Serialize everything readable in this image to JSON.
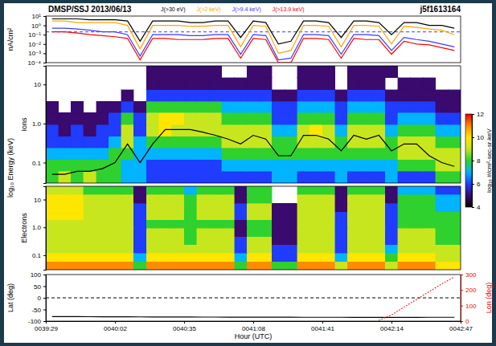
{
  "chart_data": [
    {
      "type": "line",
      "title": "DMSP/SSJ 2013/06/13",
      "subtitle": "j5f1613164",
      "ylabel": "nA/cm²",
      "log": "y",
      "legend": "top",
      "tick_labels": "y",
      "xlim": [
        2369,
        2567
      ],
      "ylim": [
        0.0001,
        10
      ],
      "yticks": [
        {
          "value": 0.0001,
          "label": "10⁻⁴"
        },
        {
          "value": 0.001,
          "label": "10⁻³"
        },
        {
          "value": 0.01,
          "label": "10⁻²"
        },
        {
          "value": 0.1,
          "label": "10⁻¹"
        },
        {
          "value": 1,
          "label": "10⁰"
        },
        {
          "value": 10,
          "label": "10¹"
        }
      ],
      "x": [
        2372,
        2378,
        2384,
        2390,
        2396,
        2402,
        2408,
        2414,
        2420,
        2426,
        2432,
        2438,
        2444,
        2450,
        2456,
        2462,
        2468,
        2474,
        2480,
        2486,
        2492,
        2498,
        2504,
        2510,
        2516,
        2522,
        2528,
        2534,
        2540,
        2546,
        2552,
        2558,
        2564
      ],
      "series": [
        {
          "name": "J(>30 eV)",
          "color": "#000000",
          "values": [
            5,
            5,
            5,
            4,
            4,
            4,
            3,
            0.02,
            3,
            3,
            3,
            2,
            2,
            3,
            3,
            0.05,
            3,
            2,
            0.01,
            0.02,
            3,
            3,
            2,
            0.05,
            3,
            3,
            2,
            0.1,
            2,
            2,
            1,
            1,
            0.5
          ]
        },
        {
          "name": "J(>2 keV)",
          "color": "#ffa500",
          "values": [
            3,
            3,
            2,
            2,
            2,
            2,
            1,
            0.003,
            1,
            1,
            1,
            0.8,
            0.8,
            1,
            1,
            0.005,
            1,
            0.8,
            0.001,
            0.002,
            1,
            1,
            0.8,
            0.005,
            1,
            1,
            0.8,
            0.01,
            0.8,
            0.6,
            0.4,
            0.3,
            0.1
          ]
        },
        {
          "name": "J(>9.4 keV)",
          "color": "#3c3cff",
          "values": [
            0.5,
            0.5,
            0.4,
            0.3,
            0.2,
            0.2,
            0.1,
            0.0005,
            0.1,
            0.1,
            0.1,
            0.08,
            0.08,
            0.1,
            0.1,
            0.0008,
            0.1,
            0.08,
            0.0002,
            0.0003,
            0.1,
            0.1,
            0.08,
            0.0008,
            0.1,
            0.1,
            0.08,
            0.002,
            0.05,
            0.03,
            0.02,
            0.01,
            0.005
          ]
        },
        {
          "name": "J(>13.9 keV)",
          "color": "#ff0000",
          "values": [
            0.2,
            0.2,
            0.15,
            0.1,
            0.08,
            0.06,
            0.04,
            0.0002,
            0.04,
            0.04,
            0.03,
            0.03,
            0.03,
            0.04,
            0.04,
            0.0003,
            0.04,
            0.03,
            0.0001,
            0.0001,
            0.04,
            0.04,
            0.03,
            0.0003,
            0.04,
            0.03,
            0.03,
            0.0008,
            0.02,
            0.01,
            0.008,
            0.004,
            0.002
          ]
        }
      ],
      "hline": {
        "value": 0.2,
        "color": "#3c3cff",
        "line_style": "dashed"
      }
    },
    {
      "type": "heatmap",
      "ylabel": "Ions",
      "annotations": [
        {
          "text": "log₁₀ Energy (keV)"
        }
      ],
      "log": "y",
      "tick_labels": "y",
      "xlim": [
        2369,
        2567
      ],
      "ylim": [
        0.03,
        30
      ],
      "yticks": [
        0.1,
        {
          "value": 1,
          "label": "1.0"
        },
        10
      ],
      "x_edges": [
        2369,
        2375,
        2381,
        2387,
        2393,
        2399,
        2405,
        2411,
        2417,
        2423,
        2429,
        2435,
        2441,
        2447,
        2453,
        2459,
        2465,
        2471,
        2477,
        2483,
        2489,
        2495,
        2501,
        2507,
        2513,
        2519,
        2525,
        2531,
        2537,
        2543,
        2549,
        2555,
        2561,
        2567
      ],
      "y_edges": [
        0.03,
        0.06,
        0.12,
        0.24,
        0.47,
        0.94,
        1.9,
        3.7,
        7.4,
        15,
        30
      ],
      "cells": [
        [
          8,
          9,
          8,
          9,
          8,
          8,
          7,
          7,
          6,
          6,
          6,
          6,
          6,
          6,
          6,
          6,
          6,
          6,
          7,
          7,
          6,
          6,
          6,
          7,
          6,
          6,
          6,
          7,
          6,
          6,
          6,
          8,
          8
        ],
        [
          8,
          8,
          8,
          8,
          8,
          8,
          7,
          7,
          6,
          6,
          6,
          6,
          6,
          6,
          7,
          7,
          7,
          7,
          7,
          7,
          7,
          7,
          7,
          7,
          7,
          7,
          7,
          7,
          8,
          8,
          8,
          9,
          9
        ],
        [
          7,
          7,
          7,
          7,
          7,
          8,
          8,
          7,
          7,
          7,
          7,
          7,
          7,
          7,
          8,
          8,
          8,
          8,
          8,
          8,
          8,
          8,
          8,
          8,
          8,
          8,
          8,
          8,
          9,
          9,
          9,
          9,
          9
        ],
        [
          6,
          6,
          6,
          6,
          6,
          7,
          9,
          7,
          8,
          8,
          8,
          8,
          8,
          8,
          9,
          9,
          9,
          9,
          8,
          8,
          9,
          9,
          9,
          8,
          9,
          9,
          9,
          8,
          9,
          9,
          9,
          8,
          8
        ],
        [
          6,
          5,
          6,
          5,
          6,
          6,
          9,
          6,
          9,
          10,
          9,
          9,
          9,
          9,
          9,
          9,
          9,
          9,
          7,
          7,
          9,
          10,
          9,
          7,
          9,
          9,
          9,
          7,
          8,
          8,
          8,
          7,
          7
        ],
        [
          5,
          5,
          5,
          5,
          5,
          6,
          8,
          6,
          9,
          10,
          10,
          9,
          9,
          9,
          8,
          8,
          8,
          8,
          6,
          6,
          8,
          8,
          8,
          6,
          8,
          8,
          8,
          6,
          7,
          7,
          7,
          6,
          6
        ],
        [
          5,
          null,
          5,
          null,
          5,
          5,
          6,
          5,
          8,
          8,
          8,
          8,
          8,
          8,
          7,
          7,
          7,
          7,
          6,
          6,
          7,
          7,
          7,
          6,
          7,
          7,
          7,
          6,
          6,
          6,
          6,
          5,
          5
        ],
        [
          null,
          null,
          null,
          null,
          null,
          null,
          5,
          null,
          6,
          6,
          6,
          6,
          6,
          6,
          6,
          6,
          6,
          6,
          5,
          5,
          6,
          6,
          6,
          5,
          6,
          6,
          6,
          5,
          5,
          5,
          5,
          5,
          5
        ],
        [
          null,
          null,
          null,
          null,
          null,
          null,
          null,
          null,
          5,
          5,
          5,
          5,
          5,
          5,
          5,
          5,
          5,
          5,
          null,
          null,
          5,
          5,
          5,
          null,
          5,
          5,
          5,
          null,
          5,
          5,
          5,
          null,
          null
        ],
        [
          null,
          null,
          null,
          null,
          null,
          null,
          null,
          null,
          5,
          5,
          5,
          5,
          5,
          5,
          null,
          null,
          5,
          5,
          null,
          null,
          5,
          5,
          5,
          null,
          5,
          5,
          5,
          5,
          null,
          null,
          null,
          null,
          null
        ]
      ],
      "colorbar": {
        "range": [
          4,
          12
        ],
        "ticks": [
          4,
          6,
          8,
          10,
          12
        ],
        "label": "log₁₀ #/cm²-sec-sr-keV"
      },
      "x": [
        2372,
        2378,
        2384,
        2390,
        2396,
        2402,
        2408,
        2414,
        2420,
        2426,
        2432,
        2438,
        2444,
        2450,
        2456,
        2462,
        2468,
        2474,
        2480,
        2486,
        2492,
        2498,
        2504,
        2510,
        2516,
        2522,
        2528,
        2534,
        2540,
        2546,
        2552,
        2558,
        2564
      ],
      "series": [
        {
          "color": "#000000",
          "values": [
            0.05,
            0.05,
            0.06,
            0.06,
            0.07,
            0.1,
            0.3,
            0.1,
            0.3,
            0.7,
            0.7,
            0.7,
            0.6,
            0.5,
            0.4,
            0.3,
            0.5,
            0.4,
            0.15,
            0.15,
            0.5,
            0.5,
            0.4,
            0.2,
            0.5,
            0.4,
            0.5,
            0.2,
            0.3,
            0.3,
            0.15,
            0.1,
            0.08
          ]
        }
      ]
    },
    {
      "type": "heatmap",
      "ylabel": "Electrons",
      "log": "y",
      "tick_labels": "y",
      "xlim": [
        2369,
        2567
      ],
      "ylim": [
        0.03,
        30
      ],
      "yticks": [
        0.1,
        {
          "value": 1,
          "label": "1.0"
        },
        10
      ],
      "x_edges": [
        2369,
        2375,
        2381,
        2387,
        2393,
        2399,
        2405,
        2411,
        2417,
        2423,
        2429,
        2435,
        2441,
        2447,
        2453,
        2459,
        2465,
        2471,
        2477,
        2483,
        2489,
        2495,
        2501,
        2507,
        2513,
        2519,
        2525,
        2531,
        2537,
        2543,
        2549,
        2555,
        2561,
        2567
      ],
      "y_edges": [
        0.03,
        0.06,
        0.12,
        0.24,
        0.47,
        0.94,
        1.9,
        3.7,
        7.4,
        15,
        30
      ],
      "cells": [
        [
          11,
          11,
          11,
          11,
          11,
          11,
          11,
          8,
          11,
          11,
          11,
          11,
          11,
          11,
          11,
          8,
          11,
          11,
          8,
          8,
          11,
          11,
          11,
          9,
          11,
          11,
          11,
          9,
          11,
          11,
          11,
          10,
          10
        ],
        [
          10,
          10,
          10,
          10,
          10,
          10,
          10,
          7,
          10,
          10,
          10,
          10,
          10,
          10,
          10,
          7,
          10,
          10,
          6,
          6,
          10,
          10,
          10,
          7,
          10,
          10,
          10,
          8,
          10,
          10,
          10,
          9,
          9
        ],
        [
          9,
          9,
          9,
          9,
          9,
          9,
          9,
          6,
          9,
          9,
          9,
          9,
          9,
          9,
          9,
          6,
          9,
          9,
          6,
          6,
          9,
          9,
          9,
          6,
          9,
          9,
          9,
          7,
          9,
          9,
          9,
          9,
          9
        ],
        [
          9,
          9,
          9,
          9,
          9,
          9,
          9,
          6,
          9,
          9,
          9,
          8,
          9,
          9,
          9,
          6,
          9,
          9,
          5,
          5,
          9,
          9,
          9,
          6,
          9,
          9,
          9,
          6,
          9,
          9,
          9,
          8,
          8
        ],
        [
          9,
          9,
          9,
          9,
          9,
          9,
          9,
          6,
          9,
          9,
          9,
          8,
          9,
          9,
          9,
          5,
          8,
          8,
          5,
          5,
          9,
          9,
          9,
          6,
          9,
          9,
          9,
          6,
          9,
          9,
          9,
          8,
          8
        ],
        [
          9,
          9,
          9,
          9,
          9,
          9,
          9,
          6,
          8,
          8,
          8,
          8,
          8,
          8,
          8,
          5,
          8,
          8,
          5,
          5,
          9,
          9,
          9,
          6,
          9,
          9,
          9,
          6,
          8,
          8,
          8,
          8,
          8
        ],
        [
          10,
          10,
          10,
          9,
          9,
          9,
          9,
          6,
          9,
          9,
          9,
          8,
          9,
          9,
          9,
          6,
          9,
          9,
          5,
          5,
          9,
          9,
          9,
          6,
          9,
          9,
          9,
          6,
          8,
          8,
          8,
          8,
          8
        ],
        [
          10,
          10,
          10,
          9,
          9,
          9,
          9,
          6,
          9,
          9,
          9,
          8,
          9,
          9,
          9,
          6,
          9,
          9,
          5,
          5,
          9,
          9,
          9,
          5,
          9,
          9,
          9,
          6,
          8,
          8,
          8,
          7,
          7
        ],
        [
          10,
          10,
          10,
          9,
          9,
          9,
          9,
          5,
          9,
          9,
          9,
          8,
          9,
          9,
          9,
          5,
          8,
          8,
          null,
          null,
          9,
          9,
          9,
          5,
          9,
          9,
          9,
          5,
          8,
          8,
          8,
          7,
          7
        ],
        [
          9,
          9,
          9,
          8,
          8,
          8,
          8,
          5,
          8,
          8,
          8,
          7,
          8,
          8,
          8,
          5,
          8,
          8,
          null,
          null,
          8,
          8,
          8,
          5,
          8,
          8,
          8,
          5,
          7,
          7,
          7,
          6,
          6
        ]
      ]
    },
    {
      "type": "line",
      "ylabel": "Lat (deg)",
      "y2label": "Lon (deg)",
      "xlabel": "Hour (UTC)",
      "xlim": [
        2369,
        2567
      ],
      "xticks": [
        {
          "value": 2369,
          "label": "0039:29"
        },
        {
          "value": 2402,
          "label": "0040:02"
        },
        {
          "value": 2435,
          "label": "0040:35"
        },
        {
          "value": 2468,
          "label": "0041:08"
        },
        {
          "value": 2501,
          "label": "0041:41"
        },
        {
          "value": 2534,
          "label": "0042:14"
        },
        {
          "value": 2567,
          "label": "0042:47"
        }
      ],
      "ylim": [
        -100,
        100
      ],
      "yticks": [
        -100,
        -50,
        0,
        50,
        100
      ],
      "y2lim": [
        0,
        300
      ],
      "y2ticks": [
        0,
        100,
        200,
        300
      ],
      "x": [
        2372,
        2378,
        2384,
        2390,
        2396,
        2402,
        2408,
        2414,
        2420,
        2426,
        2432,
        2438,
        2444,
        2450,
        2456,
        2462,
        2468,
        2474,
        2480,
        2486,
        2492,
        2498,
        2504,
        2510,
        2516,
        2522,
        2528,
        2534,
        2540,
        2546,
        2552,
        2558,
        2564
      ],
      "series": [
        {
          "color": "#000000",
          "values": [
            -80.5,
            -80.7,
            -80.9,
            -81.1,
            -81.3,
            -81.5,
            -81.7,
            -81.9,
            -82.0,
            -82.2,
            -82.4,
            -82.5,
            -82.7,
            -82.8,
            -83.0,
            -83.1,
            -83.2,
            -83.3,
            -83.4,
            -83.5,
            -83.6,
            -83.6,
            -83.7,
            -83.7,
            -83.8,
            -83.8,
            -83.8,
            -83.8,
            -83.8,
            -83.8,
            -83.7,
            -83.7,
            -83.6
          ]
        },
        {
          "color": "#ff0000",
          "axis": "y2",
          "line_style": "dotted",
          "values": [
            null,
            null,
            null,
            null,
            null,
            null,
            null,
            null,
            null,
            null,
            null,
            null,
            null,
            null,
            null,
            null,
            null,
            null,
            null,
            null,
            null,
            null,
            null,
            null,
            null,
            null,
            5,
            40,
            90,
            140,
            190,
            240,
            285
          ]
        }
      ],
      "hline": {
        "value": 0,
        "color": "#000000",
        "line_style": "dashed"
      }
    }
  ]
}
